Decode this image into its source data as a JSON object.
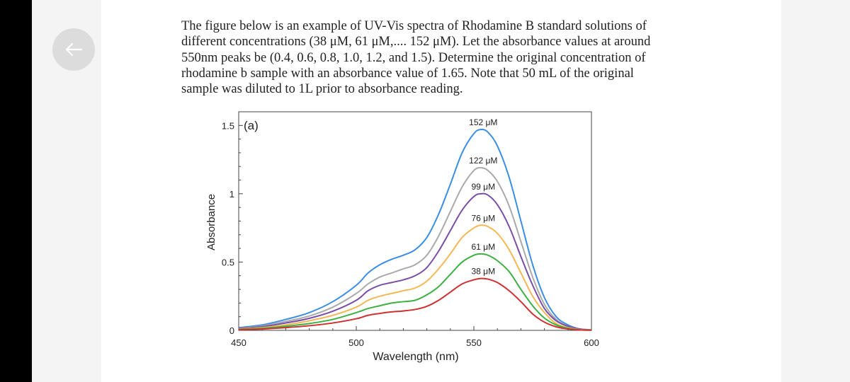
{
  "nav": {
    "back_icon": "arrow-left-icon"
  },
  "question": {
    "lines": [
      "The figure below is an example of UV-Vis spectra of Rhodamine B standard solutions of",
      "different concentrations (38 μM, 61 μM,.... 152 μM). Let the absorbance values at around",
      "550nm peaks be (0.4, 0.6, 0.8, 1.0, 1.2, and 1.5). Determine the original concentration of",
      "rhodamine b sample with an absorbance value of 1.65. Note that 50 mL of the original",
      "sample was diluted to 1L prior to absorbance reading."
    ]
  },
  "chart_data": {
    "type": "line",
    "panel_label": "(a)",
    "xlabel": "Wavelength (nm)",
    "ylabel": "Absorbance",
    "xlim": [
      450,
      600
    ],
    "ylim": [
      0,
      1.6
    ],
    "xticks": [
      450,
      500,
      550,
      600
    ],
    "yticks": [
      0,
      0.5,
      1,
      1.5
    ],
    "ytick_labels": [
      "0",
      "0.5",
      "1",
      "1.5"
    ],
    "grid": false,
    "x": [
      450,
      460,
      470,
      480,
      490,
      500,
      505,
      510,
      515,
      520,
      525,
      530,
      535,
      540,
      545,
      550,
      553,
      556,
      560,
      565,
      570,
      575,
      580,
      585,
      590,
      595,
      600
    ],
    "series": [
      {
        "name": "152 μM",
        "color": "#3a8ee6",
        "values": [
          0.02,
          0.04,
          0.08,
          0.13,
          0.21,
          0.33,
          0.42,
          0.48,
          0.52,
          0.55,
          0.59,
          0.68,
          0.85,
          1.07,
          1.3,
          1.44,
          1.47,
          1.45,
          1.35,
          1.12,
          0.8,
          0.48,
          0.24,
          0.1,
          0.04,
          0.01,
          0.005
        ]
      },
      {
        "name": "122 μM",
        "color": "#aaaaaa",
        "values": [
          0.016,
          0.032,
          0.065,
          0.105,
          0.17,
          0.27,
          0.34,
          0.39,
          0.42,
          0.45,
          0.48,
          0.55,
          0.69,
          0.87,
          1.05,
          1.17,
          1.19,
          1.17,
          1.09,
          0.91,
          0.65,
          0.39,
          0.19,
          0.08,
          0.03,
          0.01,
          0.004
        ]
      },
      {
        "name": "99 μM",
        "color": "#7b4ea6",
        "values": [
          0.014,
          0.027,
          0.054,
          0.088,
          0.14,
          0.22,
          0.29,
          0.33,
          0.35,
          0.37,
          0.4,
          0.46,
          0.58,
          0.73,
          0.88,
          0.98,
          1.0,
          0.99,
          0.92,
          0.76,
          0.54,
          0.33,
          0.16,
          0.07,
          0.03,
          0.01,
          0.003
        ]
      },
      {
        "name": "76 μM",
        "color": "#f5b755",
        "values": [
          0.01,
          0.02,
          0.04,
          0.07,
          0.11,
          0.17,
          0.22,
          0.25,
          0.27,
          0.29,
          0.31,
          0.36,
          0.45,
          0.56,
          0.68,
          0.75,
          0.77,
          0.76,
          0.71,
          0.59,
          0.42,
          0.25,
          0.13,
          0.05,
          0.02,
          0.005,
          0.003
        ]
      },
      {
        "name": "61 μM",
        "color": "#3cb043",
        "values": [
          0.008,
          0.015,
          0.03,
          0.05,
          0.08,
          0.13,
          0.16,
          0.18,
          0.2,
          0.21,
          0.22,
          0.26,
          0.32,
          0.41,
          0.5,
          0.55,
          0.56,
          0.55,
          0.51,
          0.43,
          0.3,
          0.18,
          0.09,
          0.04,
          0.015,
          0.004,
          0.002
        ]
      },
      {
        "name": "38 μM",
        "color": "#d03030",
        "values": [
          0.005,
          0.01,
          0.02,
          0.034,
          0.054,
          0.085,
          0.11,
          0.124,
          0.135,
          0.142,
          0.153,
          0.176,
          0.22,
          0.28,
          0.34,
          0.37,
          0.38,
          0.375,
          0.35,
          0.29,
          0.21,
          0.12,
          0.06,
          0.026,
          0.01,
          0.003,
          0.001
        ]
      }
    ]
  }
}
